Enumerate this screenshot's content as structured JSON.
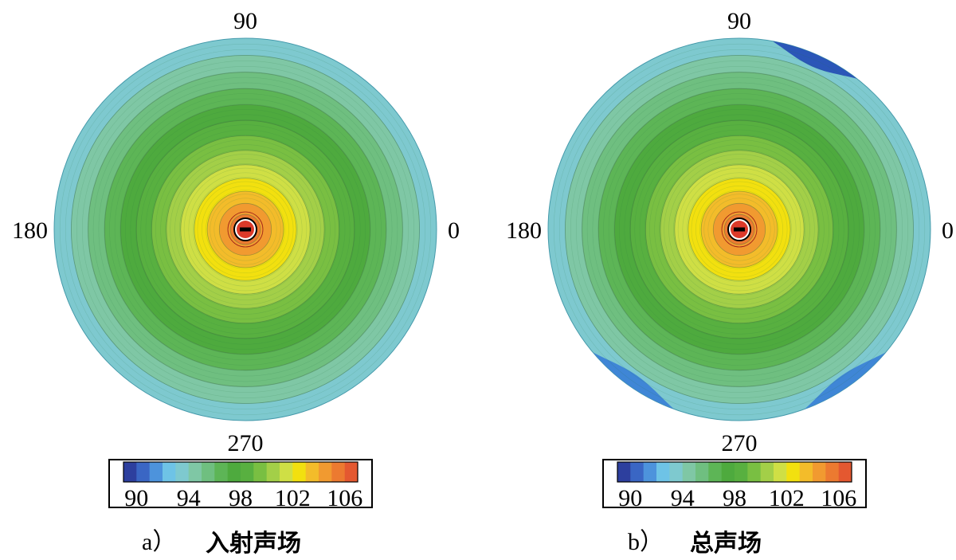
{
  "chart_data": [
    {
      "type": "polar-contour",
      "panel_label": "a）",
      "caption": "入射声场",
      "angle_labels": {
        "right": "0",
        "top": "90",
        "left": "180",
        "bottom": "270"
      },
      "colorbar": {
        "ticks": [
          "90",
          "94",
          "98",
          "102",
          "106"
        ],
        "range": [
          89,
          107
        ],
        "levels": [
          89,
          90,
          91,
          92,
          93,
          94,
          95,
          96,
          97,
          98,
          99,
          100,
          101,
          102,
          103,
          104,
          105,
          106,
          107
        ],
        "colors": [
          "#2d3f9e",
          "#3a66c4",
          "#4d93dc",
          "#6ec3e6",
          "#7ec9cf",
          "#7fc7a5",
          "#6fbf80",
          "#5db556",
          "#4eaa3e",
          "#58b040",
          "#79bf42",
          "#a3cf48",
          "#cfdf45",
          "#f2e00f",
          "#f3bc2a",
          "#f19a30",
          "#ec7a30",
          "#e45830",
          "#dc3a2a"
        ]
      },
      "field": {
        "edge_level": 93.0,
        "center_level": 106.8,
        "profile_exponent": 0.8,
        "asymmetry": 0.0
      }
    },
    {
      "type": "polar-contour",
      "panel_label": "b）",
      "caption": "总声场",
      "angle_labels": {
        "right": "0",
        "top": "90",
        "left": "180",
        "bottom": "270"
      },
      "colorbar": {
        "ticks": [
          "90",
          "94",
          "98",
          "102",
          "106"
        ],
        "range": [
          89,
          107
        ],
        "levels": [
          89,
          90,
          91,
          92,
          93,
          94,
          95,
          96,
          97,
          98,
          99,
          100,
          101,
          102,
          103,
          104,
          105,
          106,
          107
        ],
        "colors": [
          "#2d3f9e",
          "#3a66c4",
          "#4d93dc",
          "#6ec3e6",
          "#7ec9cf",
          "#7fc7a5",
          "#6fbf80",
          "#5db556",
          "#4eaa3e",
          "#58b040",
          "#79bf42",
          "#a3cf48",
          "#cfdf45",
          "#f2e00f",
          "#f3bc2a",
          "#f19a30",
          "#ec7a30",
          "#e45830",
          "#dc3a2a"
        ]
      },
      "field": {
        "edge_level": 93.0,
        "center_level": 106.8,
        "profile_exponent": 0.8,
        "asymmetry": 1.6
      }
    }
  ]
}
